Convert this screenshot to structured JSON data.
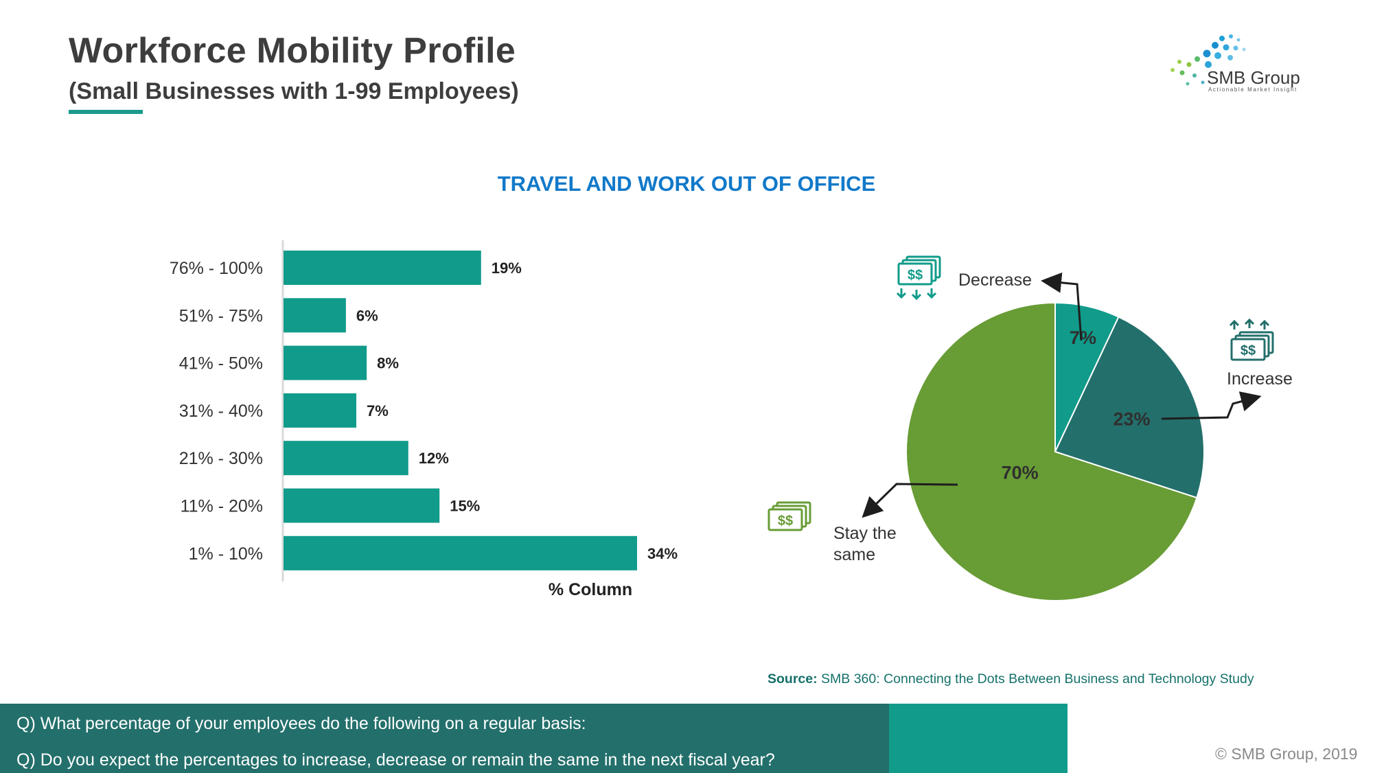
{
  "header": {
    "title": "Workforce Mobility Profile",
    "subtitle": "(Small Businesses with 1-99 Employees)"
  },
  "logo": {
    "name": "SMB Group",
    "tagline": "Actionable Market Insight"
  },
  "chart_heading": "TRAVEL AND WORK OUT OF OFFICE",
  "chart_data": [
    {
      "type": "bar",
      "orientation": "horizontal",
      "categories": [
        "76% - 100%",
        "51% - 75%",
        "41% - 50%",
        "31% - 40%",
        "21% - 30%",
        "11% - 20%",
        "1% - 10%"
      ],
      "values": [
        19,
        6,
        8,
        7,
        12,
        15,
        34
      ],
      "value_labels": [
        "19%",
        "6%",
        "8%",
        "7%",
        "12%",
        "15%",
        "34%"
      ],
      "xlabel": "% Column",
      "xlim": [
        0,
        34
      ],
      "color": "#119b8a"
    },
    {
      "type": "pie",
      "categories": [
        "Decrease",
        "Increase",
        "Stay the same"
      ],
      "values": [
        7,
        23,
        70
      ],
      "value_labels": [
        "7%",
        "23%",
        "70%"
      ],
      "colors": [
        "#119b8a",
        "#236f6b",
        "#689c35"
      ]
    }
  ],
  "source": {
    "label": "Source:",
    "text": "SMB 360: Connecting the Dots Between Business and Technology Study"
  },
  "questions": [
    "Q) What percentage of your employees do the following on a regular basis:",
    "Q) Do you expect the percentages to increase, decrease or remain the same in the next fiscal year?"
  ],
  "copyright": "© SMB Group, 2019",
  "icons": {
    "decrease": "money-down-arrows-icon",
    "increase": "money-up-arrows-icon",
    "same": "money-stack-icon"
  }
}
